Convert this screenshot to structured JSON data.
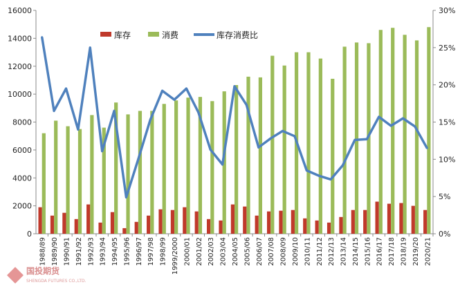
{
  "chart_data": {
    "type": "bar",
    "categories": [
      "1988/89",
      "1989/90",
      "1990/91",
      "1991/92",
      "1992/93",
      "1993/94",
      "1994/95",
      "1995/96",
      "1996/97",
      "1997/98",
      "1998/99",
      "1999/2000",
      "2000/01",
      "2001/02",
      "2002/03",
      "2003/04",
      "2004/05",
      "2005/06",
      "2006/07",
      "2007/08",
      "2008/09",
      "2009/10",
      "2010/11",
      "2011/12",
      "2012/13",
      "2013/14",
      "2014/15",
      "2015/16",
      "2016/17",
      "2017/18",
      "2018/19",
      "2019/20",
      "2020/21"
    ],
    "series": [
      {
        "name": "库存",
        "type": "bar",
        "axis": "left",
        "color": "#c0392b",
        "values": [
          1900,
          1300,
          1500,
          1050,
          2100,
          800,
          1550,
          400,
          850,
          1300,
          1750,
          1700,
          1900,
          1600,
          1050,
          950,
          2100,
          1950,
          1300,
          1600,
          1650,
          1700,
          1100,
          950,
          800,
          1200,
          1700,
          1700,
          2300,
          2150,
          2200,
          2000,
          1700
        ]
      },
      {
        "name": "消费",
        "type": "bar",
        "axis": "left",
        "color": "#9bbb59",
        "values": [
          7200,
          8100,
          7700,
          7500,
          8500,
          7600,
          9400,
          8550,
          8800,
          8800,
          9300,
          9550,
          9750,
          9800,
          9500,
          10200,
          10650,
          11250,
          11200,
          12750,
          12050,
          13000,
          13000,
          12550,
          11100,
          13400,
          13700,
          13650,
          14600,
          14750,
          14250,
          13850,
          14800
        ]
      },
      {
        "name": "库存消费比",
        "type": "line",
        "axis": "right",
        "color": "#4f81bd",
        "values": [
          26.4,
          16.5,
          19.5,
          14.0,
          25.0,
          11.1,
          16.5,
          4.9,
          10.0,
          15.3,
          19.2,
          18.0,
          19.5,
          16.3,
          11.3,
          9.3,
          19.8,
          17.3,
          11.6,
          12.8,
          13.8,
          13.1,
          8.5,
          7.8,
          7.3,
          9.2,
          12.6,
          12.7,
          15.7,
          14.5,
          15.5,
          14.4,
          11.5
        ]
      }
    ],
    "yleft": {
      "min": 0,
      "max": 16000,
      "ticks": [
        "0",
        "2000",
        "4000",
        "6000",
        "8000",
        "10000",
        "12000",
        "14000",
        "16000"
      ]
    },
    "yright": {
      "min": 0,
      "max": 30,
      "ticks": [
        "0%",
        "5%",
        "10%",
        "15%",
        "20%",
        "25%",
        "30%"
      ]
    },
    "legend_position": "top-center",
    "grid": false
  },
  "watermark": {
    "text": "国投期货",
    "subtext": "SHENGDA FUTURES CO.,LTD."
  }
}
